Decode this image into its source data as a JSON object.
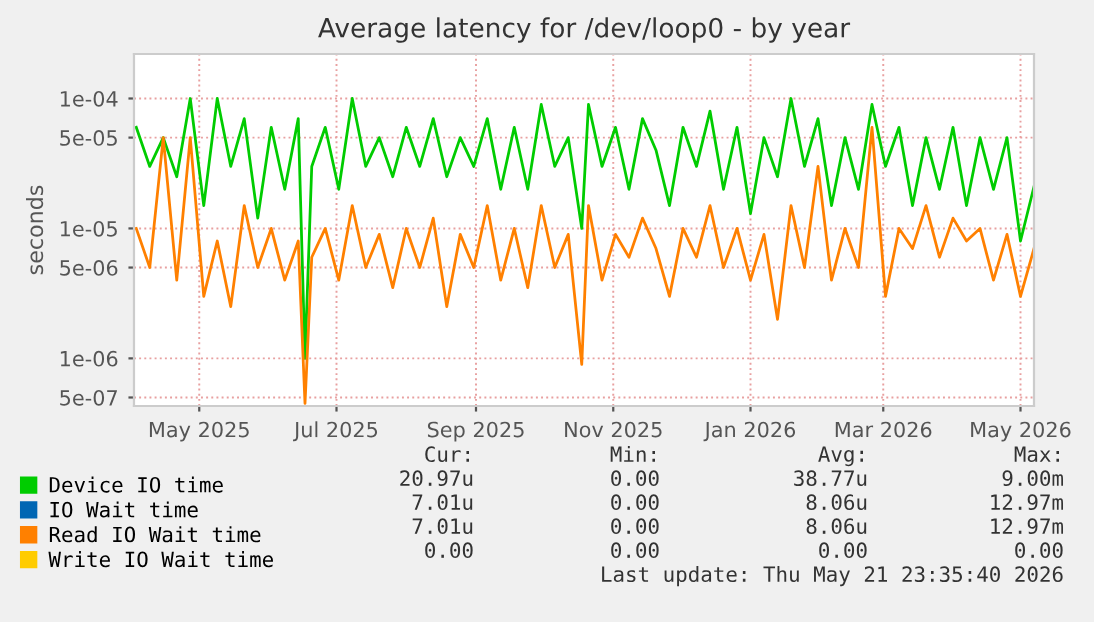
{
  "chart_data": {
    "type": "line",
    "title": "Average latency for /dev/loop0 - by year",
    "ylabel": "seconds",
    "log": "y",
    "grid": true,
    "legend": "bottom",
    "marker": "none",
    "line_style": "solid",
    "xlim": [
      "2025-04-16",
      "2026-05-21"
    ],
    "xticks": [
      {
        "value": "2025-05-15",
        "label": "May 2025"
      },
      {
        "value": "2025-07-15",
        "label": "Jul 2025"
      },
      {
        "value": "2025-09-15",
        "label": "Sep 2025"
      },
      {
        "value": "2025-11-15",
        "label": "Nov 2025"
      },
      {
        "value": "2026-01-15",
        "label": "Jan 2026"
      },
      {
        "value": "2026-03-15",
        "label": "Mar 2026"
      },
      {
        "value": "2026-05-15",
        "label": "May 2026"
      }
    ],
    "ylim": [
      4.3e-07,
      0.00022
    ],
    "yticks": [
      {
        "value": 5e-07,
        "label": "5e-07"
      },
      {
        "value": 1e-06,
        "label": "1e-06"
      },
      {
        "value": 5e-06,
        "label": "5e-06"
      },
      {
        "value": 1e-05,
        "label": "1e-05"
      },
      {
        "value": 5e-05,
        "label": "5e-05"
      },
      {
        "value": 0.0001,
        "label": "1e-04"
      }
    ],
    "x": [
      "2025-04-17",
      "2025-04-23",
      "2025-04-29",
      "2025-05-05",
      "2025-05-11",
      "2025-05-17",
      "2025-05-23",
      "2025-05-29",
      "2025-06-04",
      "2025-06-10",
      "2025-06-16",
      "2025-06-22",
      "2025-06-28",
      "2025-07-01",
      "2025-07-04",
      "2025-07-10",
      "2025-07-16",
      "2025-07-22",
      "2025-07-28",
      "2025-08-03",
      "2025-08-09",
      "2025-08-15",
      "2025-08-21",
      "2025-08-27",
      "2025-09-02",
      "2025-09-08",
      "2025-09-14",
      "2025-09-20",
      "2025-09-26",
      "2025-10-02",
      "2025-10-08",
      "2025-10-14",
      "2025-10-20",
      "2025-10-26",
      "2025-11-01",
      "2025-11-04",
      "2025-11-10",
      "2025-11-16",
      "2025-11-22",
      "2025-11-28",
      "2025-12-04",
      "2025-12-10",
      "2025-12-16",
      "2025-12-22",
      "2025-12-28",
      "2026-01-03",
      "2026-01-09",
      "2026-01-15",
      "2026-01-21",
      "2026-01-27",
      "2026-02-02",
      "2026-02-08",
      "2026-02-14",
      "2026-02-20",
      "2026-02-26",
      "2026-03-04",
      "2026-03-10",
      "2026-03-16",
      "2026-03-22",
      "2026-03-28",
      "2026-04-03",
      "2026-04-09",
      "2026-04-15",
      "2026-04-21",
      "2026-04-27",
      "2026-05-03",
      "2026-05-09",
      "2026-05-15",
      "2026-05-21"
    ],
    "series": [
      {
        "name": "Device IO time",
        "color": "#00cc00",
        "values": [
          6e-05,
          3e-05,
          5e-05,
          2.5e-05,
          0.0001,
          1.5e-05,
          0.0001,
          3e-05,
          7e-05,
          1.2e-05,
          6e-05,
          2e-05,
          7e-05,
          1e-06,
          3e-05,
          6e-05,
          2e-05,
          0.0001,
          3e-05,
          5e-05,
          2.5e-05,
          6e-05,
          3e-05,
          7e-05,
          2.5e-05,
          5e-05,
          3e-05,
          7e-05,
          2e-05,
          6e-05,
          2e-05,
          9e-05,
          3e-05,
          5e-05,
          1e-05,
          9e-05,
          3e-05,
          6e-05,
          2e-05,
          7e-05,
          4e-05,
          1.5e-05,
          6e-05,
          3e-05,
          8e-05,
          2e-05,
          6e-05,
          1.3e-05,
          5e-05,
          2.5e-05,
          0.0001,
          3e-05,
          7e-05,
          1.5e-05,
          5e-05,
          2e-05,
          9e-05,
          3e-05,
          6e-05,
          1.5e-05,
          5e-05,
          2e-05,
          6e-05,
          1.5e-05,
          5e-05,
          2e-05,
          5e-05,
          8e-06,
          2.1e-05
        ]
      },
      {
        "name": "IO Wait time",
        "color": "#0066b3",
        "values": [
          null,
          null,
          null,
          null,
          null,
          null,
          null,
          null,
          null,
          null,
          null,
          null,
          null,
          null,
          null,
          null,
          null,
          null,
          null,
          null,
          null,
          null,
          null,
          null,
          null,
          null,
          null,
          null,
          null,
          null,
          null,
          null,
          null,
          null,
          null,
          null,
          null,
          null,
          null,
          null,
          null,
          null,
          null,
          null,
          null,
          null,
          null,
          null,
          null,
          null,
          null,
          null,
          null,
          null,
          null,
          null,
          null,
          null,
          null,
          null,
          null,
          null,
          null,
          null,
          null,
          null,
          null,
          null,
          null
        ]
      },
      {
        "name": "Read IO Wait time",
        "color": "#ff8000",
        "values": [
          1e-05,
          5e-06,
          5e-05,
          4e-06,
          5e-05,
          3e-06,
          8e-06,
          2.5e-06,
          1.5e-05,
          5e-06,
          1e-05,
          4e-06,
          8e-06,
          4.5e-07,
          6e-06,
          1e-05,
          4e-06,
          1.5e-05,
          5e-06,
          9e-06,
          3.5e-06,
          1e-05,
          5e-06,
          1.2e-05,
          2.5e-06,
          9e-06,
          5e-06,
          1.5e-05,
          4e-06,
          1e-05,
          3.5e-06,
          1.5e-05,
          5e-06,
          9e-06,
          9e-07,
          1.5e-05,
          4e-06,
          9e-06,
          6e-06,
          1.2e-05,
          7e-06,
          3e-06,
          1e-05,
          6e-06,
          1.5e-05,
          5e-06,
          1e-05,
          4e-06,
          9e-06,
          2e-06,
          1.5e-05,
          5e-06,
          3e-05,
          4e-06,
          1e-05,
          5e-06,
          6e-05,
          3e-06,
          1e-05,
          7e-06,
          1.5e-05,
          6e-06,
          1.2e-05,
          8e-06,
          1e-05,
          4e-06,
          9e-06,
          3e-06,
          7e-06
        ]
      },
      {
        "name": "Write IO Wait time",
        "color": "#ffcc00",
        "values": [
          null,
          null,
          null,
          null,
          null,
          null,
          null,
          null,
          null,
          null,
          null,
          null,
          null,
          null,
          null,
          null,
          null,
          null,
          null,
          null,
          null,
          null,
          null,
          null,
          null,
          null,
          null,
          null,
          null,
          null,
          null,
          null,
          null,
          null,
          null,
          null,
          null,
          null,
          null,
          null,
          null,
          null,
          null,
          null,
          null,
          null,
          null,
          null,
          null,
          null,
          null,
          null,
          null,
          null,
          null,
          null,
          null,
          null,
          null,
          null,
          null,
          null,
          null,
          null,
          null,
          null,
          null,
          null,
          null
        ]
      }
    ],
    "annotations": [
      "Cur:",
      "Min:",
      "Avg:",
      "Max:",
      "20.97u",
      "0.00",
      "38.77u",
      "9.00m",
      "7.01u",
      "0.00",
      "8.06u",
      "12.97m",
      "7.01u",
      "0.00",
      "8.06u",
      "12.97m",
      "0.00",
      "0.00",
      "0.00",
      "0.00",
      "Last update: Thu May 21 23:35:40 2026"
    ]
  }
}
